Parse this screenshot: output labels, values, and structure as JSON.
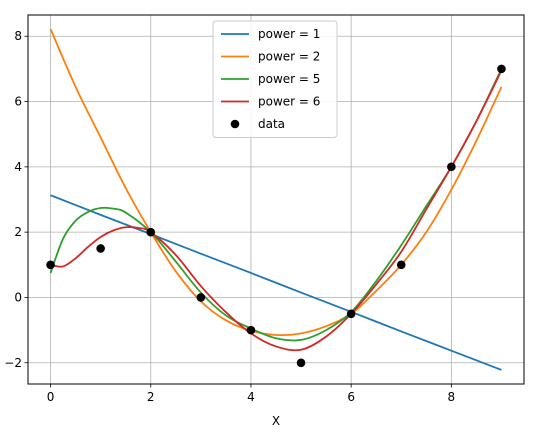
{
  "chart_data": {
    "type": "line",
    "title": "",
    "xlabel": "X",
    "ylabel": "",
    "xlim": [
      -0.45,
      9.45
    ],
    "ylim": [
      -2.65,
      8.65
    ],
    "xticks": [
      0,
      2,
      4,
      6,
      8
    ],
    "yticks": [
      -2,
      0,
      2,
      4,
      6,
      8
    ],
    "grid": true,
    "legend_position": "top-center",
    "points": {
      "name": "data",
      "color": "#000000",
      "x": [
        0,
        1,
        2,
        3,
        4,
        5,
        6,
        7,
        8,
        9
      ],
      "y": [
        1,
        1.5,
        2,
        0,
        -1,
        -2,
        -0.5,
        1,
        4,
        7
      ]
    },
    "series": [
      {
        "name": "power = 1",
        "color": "#1f77b4",
        "x": [
          0,
          1,
          2,
          3,
          4,
          5,
          6,
          7,
          8,
          9
        ],
        "y": [
          3.13,
          2.53,
          1.94,
          1.34,
          0.75,
          0.15,
          -0.44,
          -1.04,
          -1.63,
          -2.22
        ]
      },
      {
        "name": "power = 2",
        "color": "#ff7f0e",
        "x": [
          0,
          0.5,
          1,
          1.5,
          2,
          2.5,
          3,
          3.5,
          4,
          4.5,
          5,
          5.5,
          6,
          6.5,
          7,
          7.5,
          8,
          8.5,
          9
        ],
        "y": [
          8.22,
          6.45,
          4.9,
          3.35,
          2.0,
          0.8,
          -0.12,
          -0.7,
          -1.02,
          -1.15,
          -1.1,
          -0.88,
          -0.5,
          0.2,
          1.0,
          2.0,
          3.3,
          4.8,
          6.45
        ]
      },
      {
        "name": "power = 5",
        "color": "#2ca02c",
        "x": [
          0,
          0.25,
          0.5,
          0.75,
          1,
          1.25,
          1.5,
          2,
          2.5,
          3,
          3.5,
          4,
          4.5,
          5,
          5.5,
          6,
          6.5,
          7,
          7.5,
          8,
          8.5,
          9
        ],
        "y": [
          0.75,
          1.8,
          2.35,
          2.62,
          2.74,
          2.72,
          2.6,
          2.0,
          1.1,
          0.15,
          -0.55,
          -0.95,
          -1.25,
          -1.3,
          -1.0,
          -0.45,
          0.5,
          1.6,
          2.8,
          4.0,
          5.4,
          7.0
        ]
      },
      {
        "name": "power = 6",
        "color": "#d62728",
        "x": [
          0,
          0.25,
          0.5,
          0.75,
          1,
          1.25,
          1.5,
          1.75,
          2,
          2.5,
          3,
          3.5,
          4,
          4.5,
          5,
          5.5,
          6,
          6.5,
          7,
          7.5,
          8,
          8.5,
          9
        ],
        "y": [
          1.0,
          0.95,
          1.2,
          1.55,
          1.85,
          2.05,
          2.15,
          2.13,
          2.0,
          1.3,
          0.35,
          -0.45,
          -1.1,
          -1.5,
          -1.6,
          -1.2,
          -0.5,
          0.4,
          1.4,
          2.7,
          4.0,
          5.4,
          6.95
        ]
      }
    ]
  }
}
